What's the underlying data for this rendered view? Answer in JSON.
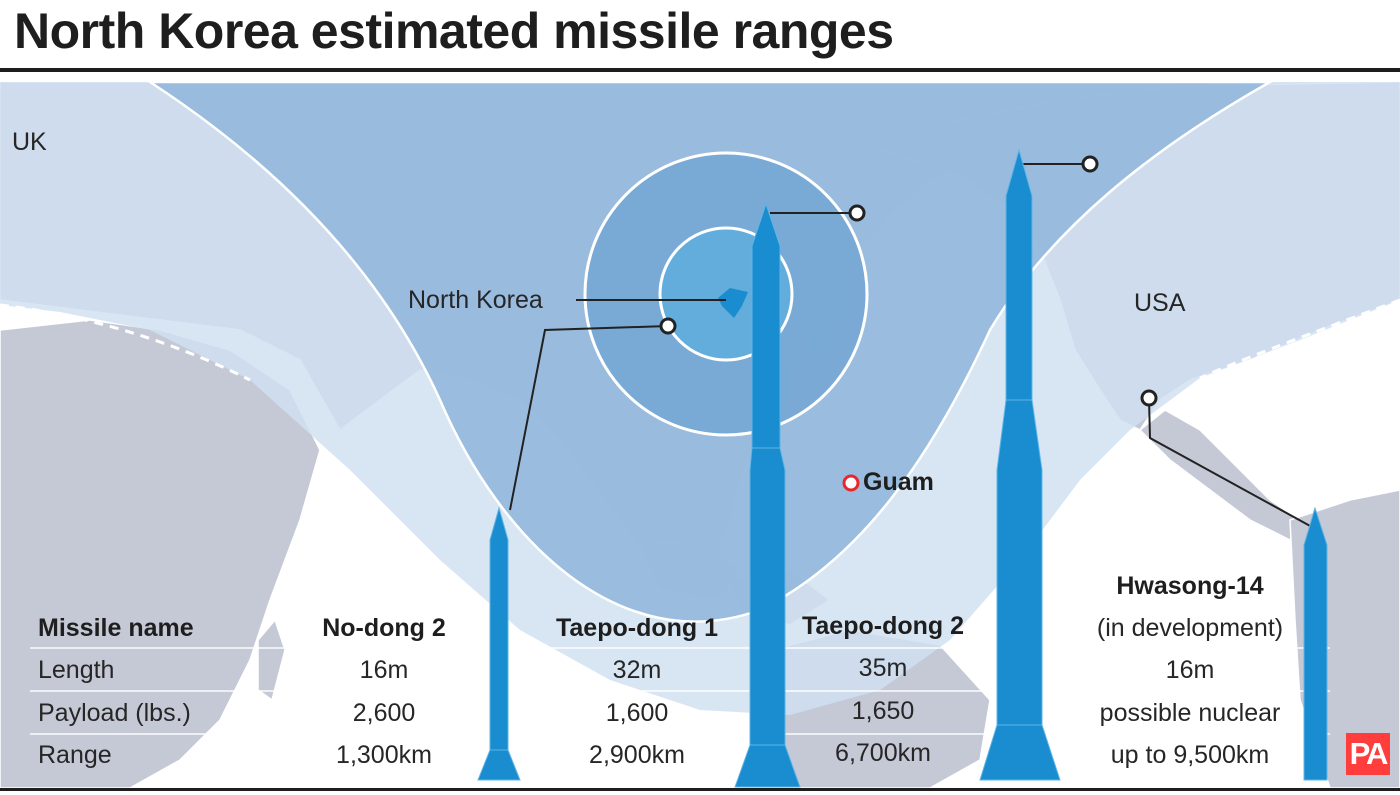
{
  "title": "North Korea estimated missile ranges",
  "map": {
    "labels": {
      "uk": "UK",
      "north_korea": "North Korea",
      "usa": "USA",
      "guam": "Guam"
    }
  },
  "table": {
    "row_headers": {
      "name": "Missile name",
      "length": "Length",
      "payload": "Payload (lbs.)",
      "range": "Range"
    },
    "missiles": [
      {
        "name": "No-dong 2",
        "length": "16m",
        "payload": "2,600",
        "range": "1,300km",
        "range_km": 1300
      },
      {
        "name": "Taepo-dong 1",
        "length": "32m",
        "payload": "1,600",
        "range": "2,900km",
        "range_km": 2900
      },
      {
        "name": "Taepo-dong 2",
        "length": "35m",
        "payload": "1,650",
        "range": "6,700km",
        "range_km": 6700
      },
      {
        "name": "Hwasong-14",
        "status": "(in development)",
        "length": "16m",
        "payload": "possible nuclear",
        "range": "up to 9,500km",
        "range_km": 9500
      }
    ]
  },
  "logo": "PA",
  "colors": {
    "ocean": "#ffffff",
    "land": "#c5c9d6",
    "range_outer": "#cfe1f1",
    "range_mid": "#8fb5da",
    "range_inner": "#6fa3d2",
    "range_core": "#5eaedc",
    "missile": "#1a8cd0",
    "guam_marker": "#e8262e",
    "pa_red": "#ff3d3d"
  }
}
